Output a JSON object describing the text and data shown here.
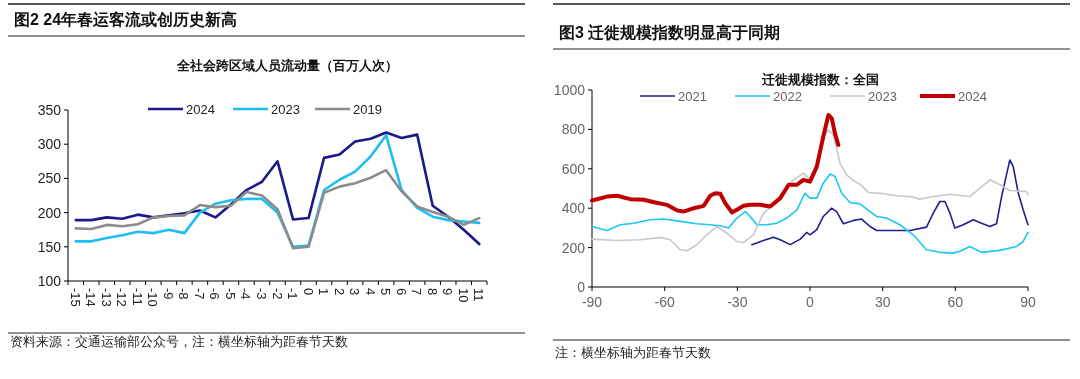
{
  "chart_data": [
    {
      "type": "line",
      "title": "图2  24年春运客流或创历史新高",
      "subtitle": "全社会跨区域人员流动量（百万人次）",
      "annotations": [
        "资料来源：交通运输部公众号，注：横坐标轴为距春节天数"
      ],
      "categories": [
        "-15",
        "-14",
        "-13",
        "-12",
        "-11",
        "-10",
        "-9",
        "-8",
        "-7",
        "-6",
        "-5",
        "-4",
        "-3",
        "-2",
        "-1",
        "0",
        "1",
        "2",
        "3",
        "4",
        "5",
        "6",
        "7",
        "8",
        "9",
        "10",
        "11"
      ],
      "ylim": [
        100,
        350
      ],
      "yticks": [
        100,
        150,
        200,
        250,
        300,
        350
      ],
      "legend": "top",
      "series": [
        {
          "name": "2024",
          "color": "#1a1a8a",
          "values": [
            189,
            189,
            193,
            191,
            197,
            193,
            196,
            199,
            203,
            193,
            212,
            233,
            245,
            275,
            190,
            192,
            280,
            285,
            304,
            308,
            317,
            309,
            314,
            210,
            194,
            175,
            154
          ]
        },
        {
          "name": "2023",
          "color": "#1ebff0",
          "values": [
            158,
            158,
            163,
            167,
            172,
            170,
            175,
            170,
            200,
            213,
            218,
            220,
            220,
            200,
            150,
            152,
            233,
            248,
            260,
            282,
            313,
            233,
            207,
            194,
            189,
            187,
            185
          ]
        },
        {
          "name": "2019",
          "color": "#8c8c8c",
          "values": [
            177,
            176,
            182,
            180,
            183,
            193,
            195,
            196,
            211,
            208,
            210,
            230,
            225,
            205,
            148,
            150,
            229,
            238,
            243,
            251,
            262,
            231,
            209,
            201,
            194,
            182,
            192
          ]
        }
      ]
    },
    {
      "type": "line",
      "title": "图3  迁徙规模指数明显高于同期",
      "subtitle": "迁徙规模指数：全国",
      "annotations": [
        "注：横坐标轴为距春节天数"
      ],
      "xlim": [
        -90,
        90
      ],
      "xticks": [
        -90,
        -60,
        -30,
        0,
        30,
        60,
        90
      ],
      "ylim": [
        0,
        1000
      ],
      "yticks": [
        0,
        200,
        400,
        600,
        800,
        1000
      ],
      "legend": "top",
      "series": [
        {
          "name": "2021",
          "color": "#1f1f8f",
          "x": [
            -24,
            -19.2,
            -15.1,
            -12.3,
            -8.2,
            -4,
            -1.4,
            0,
            2.8,
            5.5,
            8.9,
            11,
            13.8,
            17.9,
            21.3,
            24.8,
            27.5,
            34.4,
            41.3,
            48.1,
            50.9,
            53.6,
            55.7,
            57.8,
            59.8,
            63.3,
            67.4,
            70.8,
            74.3,
            77,
            79.1,
            82.5,
            83.9,
            86,
            88,
            90
          ],
          "values": [
            215,
            236,
            253,
            240,
            215,
            243,
            277,
            265,
            291,
            358,
            400,
            383,
            321,
            338,
            345,
            307,
            287,
            287,
            287,
            304,
            375,
            434,
            434,
            375,
            299,
            316,
            341,
            324,
            307,
            321,
            459,
            645,
            611,
            476,
            392,
            316
          ]
        },
        {
          "name": "2022",
          "color": "#19c8f5",
          "x": [
            -90,
            -83.8,
            -78.3,
            -72.8,
            -66,
            -60.4,
            -53.6,
            -46.7,
            -41.2,
            -37,
            -33.6,
            -30.2,
            -26.7,
            -24.7,
            -21.9,
            -17.8,
            -13.7,
            -9.6,
            -5.4,
            -2.1,
            0,
            2.8,
            5.5,
            8.3,
            10.3,
            13.1,
            16.5,
            20.6,
            24.8,
            27.5,
            31.6,
            37.1,
            42.6,
            48.1,
            53.6,
            59.1,
            61.9,
            66,
            70.8,
            78.4,
            85.3,
            88,
            90
          ],
          "values": [
            307,
            287,
            316,
            324,
            341,
            345,
            333,
            321,
            316,
            311,
            299,
            350,
            383,
            358,
            316,
            316,
            324,
            350,
            392,
            476,
            451,
            451,
            527,
            574,
            561,
            476,
            429,
            422,
            383,
            358,
            350,
            316,
            265,
            189,
            176,
            172,
            181,
            206,
            176,
            186,
            206,
            231,
            277
          ]
        },
        {
          "name": "2023",
          "color": "#c8c8c8",
          "x": [
            -90,
            -79.7,
            -70.1,
            -61.8,
            -57.7,
            -53.6,
            -50.8,
            -46.7,
            -42.6,
            -38.5,
            -34.4,
            -30.2,
            -27.4,
            -23.3,
            -19.2,
            -15.1,
            -11,
            -6.8,
            -2.7,
            0,
            2.8,
            5.5,
            7.6,
            9.6,
            12.4,
            15.1,
            18.6,
            20.6,
            24.1,
            28.9,
            35.8,
            41.3,
            45.4,
            50.9,
            57.8,
            66,
            70.2,
            74.3,
            78.4,
            82.5,
            89.4,
            90
          ],
          "values": [
            243,
            236,
            240,
            252,
            240,
            189,
            184,
            215,
            265,
            307,
            274,
            231,
            226,
            265,
            375,
            417,
            476,
            544,
            578,
            544,
            628,
            764,
            797,
            772,
            628,
            569,
            535,
            522,
            480,
            476,
            463,
            459,
            446,
            459,
            471,
            459,
            502,
            544,
            519,
            490,
            485,
            468
          ]
        },
        {
          "name": "2024",
          "color": "#c00000",
          "x": [
            -90,
            -83.8,
            -79.7,
            -74.2,
            -68.7,
            -63.9,
            -59.1,
            -55,
            -52.2,
            -48,
            -43.9,
            -41.2,
            -39.1,
            -37,
            -35,
            -32.2,
            -30.2,
            -27.4,
            -24.7,
            -20.5,
            -16.4,
            -12.3,
            -8.8,
            -5.4,
            -2.7,
            0,
            2.8,
            5.5,
            7.6,
            9,
            10.3,
            11.7
          ],
          "values": [
            439,
            459,
            463,
            446,
            443,
            429,
            417,
            389,
            383,
            400,
            412,
            463,
            476,
            473,
            426,
            378,
            392,
            412,
            417,
            417,
            409,
            451,
            519,
            519,
            544,
            535,
            611,
            764,
            873,
            856,
            780,
            721
          ]
        }
      ]
    }
  ]
}
